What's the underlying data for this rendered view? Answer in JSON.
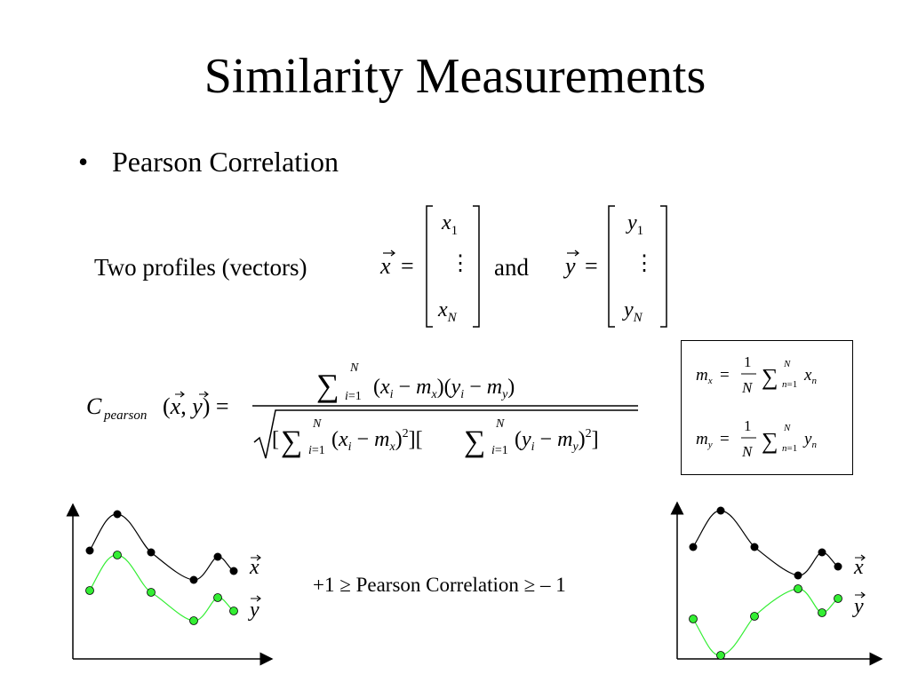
{
  "slide": {
    "title": "Similarity Measurements",
    "bullet": "Pearson Correlation",
    "intro_text": "Two profiles (vectors)",
    "and_text": "and",
    "inequality_text": "+1 ≥ Pearson Correlation ≥ – 1"
  },
  "math": {
    "vec_x": "x",
    "vec_y": "y",
    "x_entries": [
      "x1",
      "⋮",
      "xN"
    ],
    "y_entries": [
      "y1",
      "⋮",
      "yN"
    ],
    "c_pearson_label": "C",
    "c_pearson_sub": "pearson",
    "mean_x_formula": "m_x = (1/N) Σ_{n=1}^{N} x_n",
    "mean_y_formula": "m_y = (1/N) Σ_{n=1}^{N} y_n"
  },
  "charts": {
    "left": {
      "legend": [
        "x",
        "y"
      ],
      "series_colors": {
        "x": "#000000",
        "y": "#33ee33"
      }
    },
    "right": {
      "legend": [
        "x",
        "y"
      ],
      "series_colors": {
        "x": "#000000",
        "y": "#33ee33"
      }
    }
  }
}
